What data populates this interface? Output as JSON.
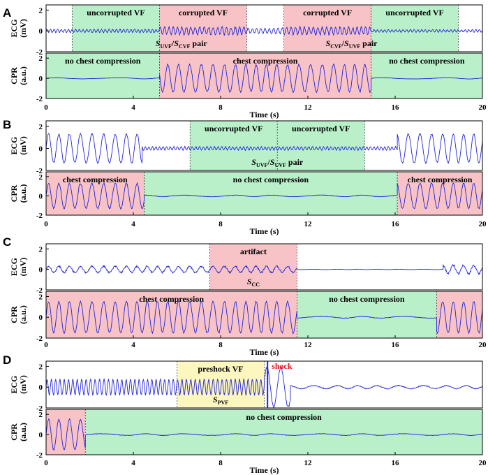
{
  "colors": {
    "signal": "#2323d8",
    "green": "#b9f0ca",
    "pink": "#f7c3c6",
    "yellow": "#fbf7be",
    "shock": "#e8141e",
    "axis": "#000000"
  },
  "chart_data": [
    {
      "panel": "A",
      "type": "line",
      "xlabel": "Time (s)",
      "xlim": [
        0,
        20
      ],
      "xticks": [
        "0",
        "4",
        "8",
        "12",
        "16",
        "20"
      ],
      "ecg": {
        "ylabel": "ECG (mV)",
        "ylim": [
          -2,
          2.5
        ],
        "yticks": [
          "2",
          "0",
          "-2"
        ],
        "regions": [
          {
            "start": 1.2,
            "end": 5.2,
            "color": "green",
            "label": "uncorrupted VF"
          },
          {
            "start": 5.2,
            "end": 9.2,
            "color": "pink",
            "label": "corrupted VF"
          },
          {
            "start": 10.9,
            "end": 14.9,
            "color": "pink",
            "label": "corrupted VF"
          },
          {
            "start": 14.9,
            "end": 18.9,
            "color": "green",
            "label": "uncorrupted VF"
          }
        ],
        "annotations": [
          {
            "x": 6.2,
            "main": "S",
            "sub": "UVF",
            "sep": "/",
            "main2": "S",
            "sub2": "CVF",
            "tail": " pair"
          },
          {
            "x": 14.0,
            "main": "S",
            "sub": "CVF",
            "sep": "/",
            "main2": "S",
            "sub2": "UVF",
            "tail": " pair"
          }
        ],
        "segments": [
          {
            "start": 0,
            "end": 5.2,
            "amp": 0.15,
            "freq": 6
          },
          {
            "start": 5.2,
            "end": 9.2,
            "amp": 0.35,
            "freq": 5
          },
          {
            "start": 9.2,
            "end": 10.9,
            "amp": 0.25,
            "freq": 5
          },
          {
            "start": 10.9,
            "end": 14.9,
            "amp": 0.35,
            "freq": 5
          },
          {
            "start": 14.9,
            "end": 20,
            "amp": 0.12,
            "freq": 6
          }
        ]
      },
      "cpr": {
        "ylabel": "CPR (a.u.)",
        "ylim": [
          -2,
          2.5
        ],
        "yticks": [
          "2",
          "0",
          "-2"
        ],
        "regions": [
          {
            "start": 0,
            "end": 5.2,
            "color": "green",
            "label": "no chest compression"
          },
          {
            "start": 5.2,
            "end": 14.9,
            "color": "pink",
            "label": "chest compression"
          },
          {
            "start": 14.9,
            "end": 20,
            "color": "green",
            "label": "no chest compression"
          }
        ],
        "segments": [
          {
            "start": 0,
            "end": 5.2,
            "amp": 0.05,
            "freq": 0.4
          },
          {
            "start": 5.2,
            "end": 14.9,
            "amp": 1.35,
            "freq": 2
          },
          {
            "start": 14.9,
            "end": 20,
            "amp": 0.06,
            "freq": 0.4
          }
        ]
      }
    },
    {
      "panel": "B",
      "type": "line",
      "xlabel": "Time (s)",
      "xlim": [
        0,
        20
      ],
      "xticks": [
        "0",
        "4",
        "8",
        "12",
        "16",
        "20"
      ],
      "ecg": {
        "ylabel": "ECG (mV)",
        "ylim": [
          -2,
          2.5
        ],
        "yticks": [
          "2",
          "0",
          "-2"
        ],
        "regions": [
          {
            "start": 6.6,
            "end": 10.6,
            "color": "green",
            "label": "uncorrupted VF"
          },
          {
            "start": 10.6,
            "end": 14.6,
            "color": "green",
            "label": "uncorrupted VF"
          }
        ],
        "annotations": [
          {
            "x": 10.6,
            "main": "S",
            "sub": "UVF",
            "sep": "/",
            "main2": "S",
            "sub2": "UVF",
            "tail": " pair"
          }
        ],
        "segments": [
          {
            "start": 0,
            "end": 4.4,
            "amp": 1.3,
            "freq": 2
          },
          {
            "start": 4.4,
            "end": 16.1,
            "amp": 0.15,
            "freq": 6
          },
          {
            "start": 16.1,
            "end": 20,
            "amp": 1.3,
            "freq": 2
          }
        ]
      },
      "cpr": {
        "ylabel": "CPR (a.u.)",
        "ylim": [
          -2,
          2.5
        ],
        "yticks": [
          "2",
          "0",
          "-2"
        ],
        "regions": [
          {
            "start": 0,
            "end": 4.5,
            "color": "pink",
            "label": "chest compression"
          },
          {
            "start": 4.5,
            "end": 16.1,
            "color": "green",
            "label": "no chest compression"
          },
          {
            "start": 16.1,
            "end": 20,
            "color": "pink",
            "label": "chest compression"
          }
        ],
        "segments": [
          {
            "start": 0,
            "end": 4.5,
            "amp": 1.3,
            "freq": 2
          },
          {
            "start": 4.5,
            "end": 16.1,
            "amp": 0.08,
            "freq": 0.5
          },
          {
            "start": 16.1,
            "end": 20,
            "amp": 1.3,
            "freq": 2
          }
        ]
      }
    },
    {
      "panel": "C",
      "type": "line",
      "xlabel": "Time (s)",
      "xlim": [
        0,
        20
      ],
      "xticks": [
        "0",
        "4",
        "8",
        "12",
        "16",
        "20"
      ],
      "ecg": {
        "ylabel": "ECG (mV)",
        "ylim": [
          -2,
          2.5
        ],
        "yticks": [
          "2",
          "0",
          "-2"
        ],
        "regions": [
          {
            "start": 7.5,
            "end": 11.5,
            "color": "pink",
            "label": "artifact"
          }
        ],
        "annotations": [
          {
            "x": 9.5,
            "main": "S",
            "sub": "CC",
            "sep": "",
            "main2": "",
            "sub2": "",
            "tail": ""
          }
        ],
        "segments": [
          {
            "start": 0,
            "end": 11.5,
            "amp": 0.3,
            "freq": 2
          },
          {
            "start": 11.5,
            "end": 18.2,
            "amp": 0.02,
            "freq": 1
          },
          {
            "start": 18.2,
            "end": 20,
            "amp": 0.4,
            "freq": 2
          }
        ]
      },
      "cpr": {
        "ylabel": "CPR (a.u.)",
        "ylim": [
          -2,
          2.5
        ],
        "yticks": [
          "2",
          "0",
          "-2"
        ],
        "regions": [
          {
            "start": 0,
            "end": 11.5,
            "color": "pink",
            "label": "chest compression"
          },
          {
            "start": 11.5,
            "end": 17.9,
            "color": "green",
            "label": "no chest compression"
          },
          {
            "start": 17.9,
            "end": 20,
            "color": "pink",
            "label": ""
          }
        ],
        "segments": [
          {
            "start": 0,
            "end": 11.5,
            "amp": 1.5,
            "freq": 2
          },
          {
            "start": 11.5,
            "end": 17.9,
            "amp": 0.08,
            "freq": 0.5
          },
          {
            "start": 17.9,
            "end": 20,
            "amp": 1.5,
            "freq": 2
          }
        ]
      }
    },
    {
      "panel": "D",
      "type": "line",
      "xlabel": "Time (s)",
      "xlim": [
        0,
        20
      ],
      "xticks": [
        "0",
        "4",
        "8",
        "12",
        "16",
        "20"
      ],
      "ecg": {
        "ylabel": "ECG (mV)",
        "ylim": [
          -2,
          2.5
        ],
        "yticks": [
          "2",
          "0",
          "-2"
        ],
        "regions": [
          {
            "start": 6.0,
            "end": 10.0,
            "color": "yellow",
            "label": "preshock VF"
          }
        ],
        "annotations": [
          {
            "x": 8.0,
            "main": "S",
            "sub": "PVF",
            "sep": "",
            "main2": "",
            "sub2": "",
            "tail": ""
          }
        ],
        "shock": {
          "x": 10.15,
          "label": "shock"
        },
        "segments": [
          {
            "start": 0,
            "end": 10.0,
            "amp": 0.75,
            "freq": 5
          },
          {
            "start": 10.0,
            "end": 11.2,
            "amp": 1.9,
            "freq": 1.5
          },
          {
            "start": 11.2,
            "end": 20,
            "amp": 0.15,
            "freq": 1
          }
        ]
      },
      "cpr": {
        "ylabel": "CPR (a.u.)",
        "ylim": [
          -2,
          2.5
        ],
        "yticks": [
          "2",
          "0",
          "-2"
        ],
        "regions": [
          {
            "start": 0,
            "end": 1.8,
            "color": "pink",
            "label": ""
          },
          {
            "start": 1.8,
            "end": 20,
            "color": "green",
            "label": "no chest compression"
          }
        ],
        "segments": [
          {
            "start": 0,
            "end": 1.8,
            "amp": 1.5,
            "freq": 2
          },
          {
            "start": 1.8,
            "end": 20,
            "amp": 0.08,
            "freq": 0.5
          }
        ]
      }
    }
  ]
}
